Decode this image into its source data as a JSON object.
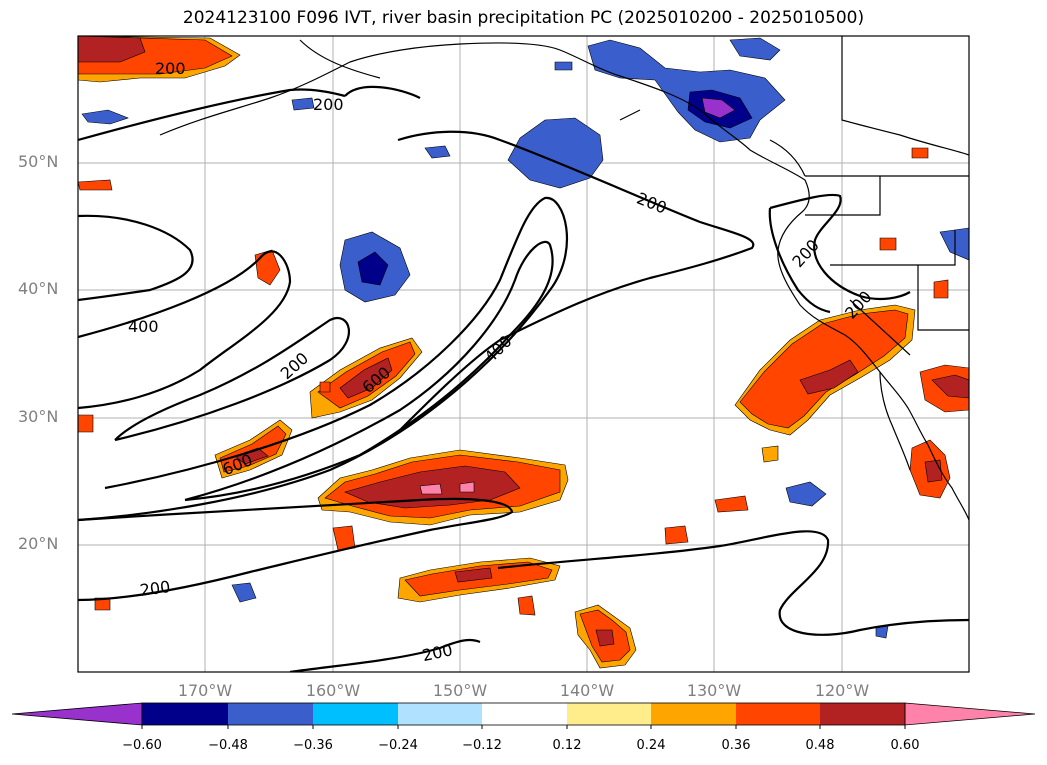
{
  "title": "2024123100 F096 IVT, river basin precipitation PC (2025010200 - 2025010500)",
  "lat_labels": [
    "50°N",
    "40°N",
    "30°N",
    "20°N"
  ],
  "lon_labels": [
    "170°W",
    "160°W",
    "150°W",
    "140°W",
    "130°W",
    "120°W"
  ],
  "contour_labels": [
    "200",
    "200",
    "200",
    "400",
    "200",
    "600",
    "400",
    "600",
    "200",
    "200",
    "200",
    "200"
  ],
  "colorbar": {
    "ticks": [
      "−0.60",
      "−0.48",
      "−0.36",
      "−0.24",
      "−0.12",
      "0.12",
      "0.24",
      "0.36",
      "0.48",
      "0.60"
    ],
    "colors": [
      "#9932CC",
      "#00008B",
      "#3A5FCD",
      "#00BFFF",
      "#B0E2FF",
      "#FFFFFF",
      "#FFEC8B",
      "#FFA500",
      "#FF4500",
      "#B22222",
      "#FF82AB"
    ]
  },
  "map_extent": {
    "lon_min": -180,
    "lon_max": -110,
    "lat_min": 10,
    "lat_max": 60
  }
}
